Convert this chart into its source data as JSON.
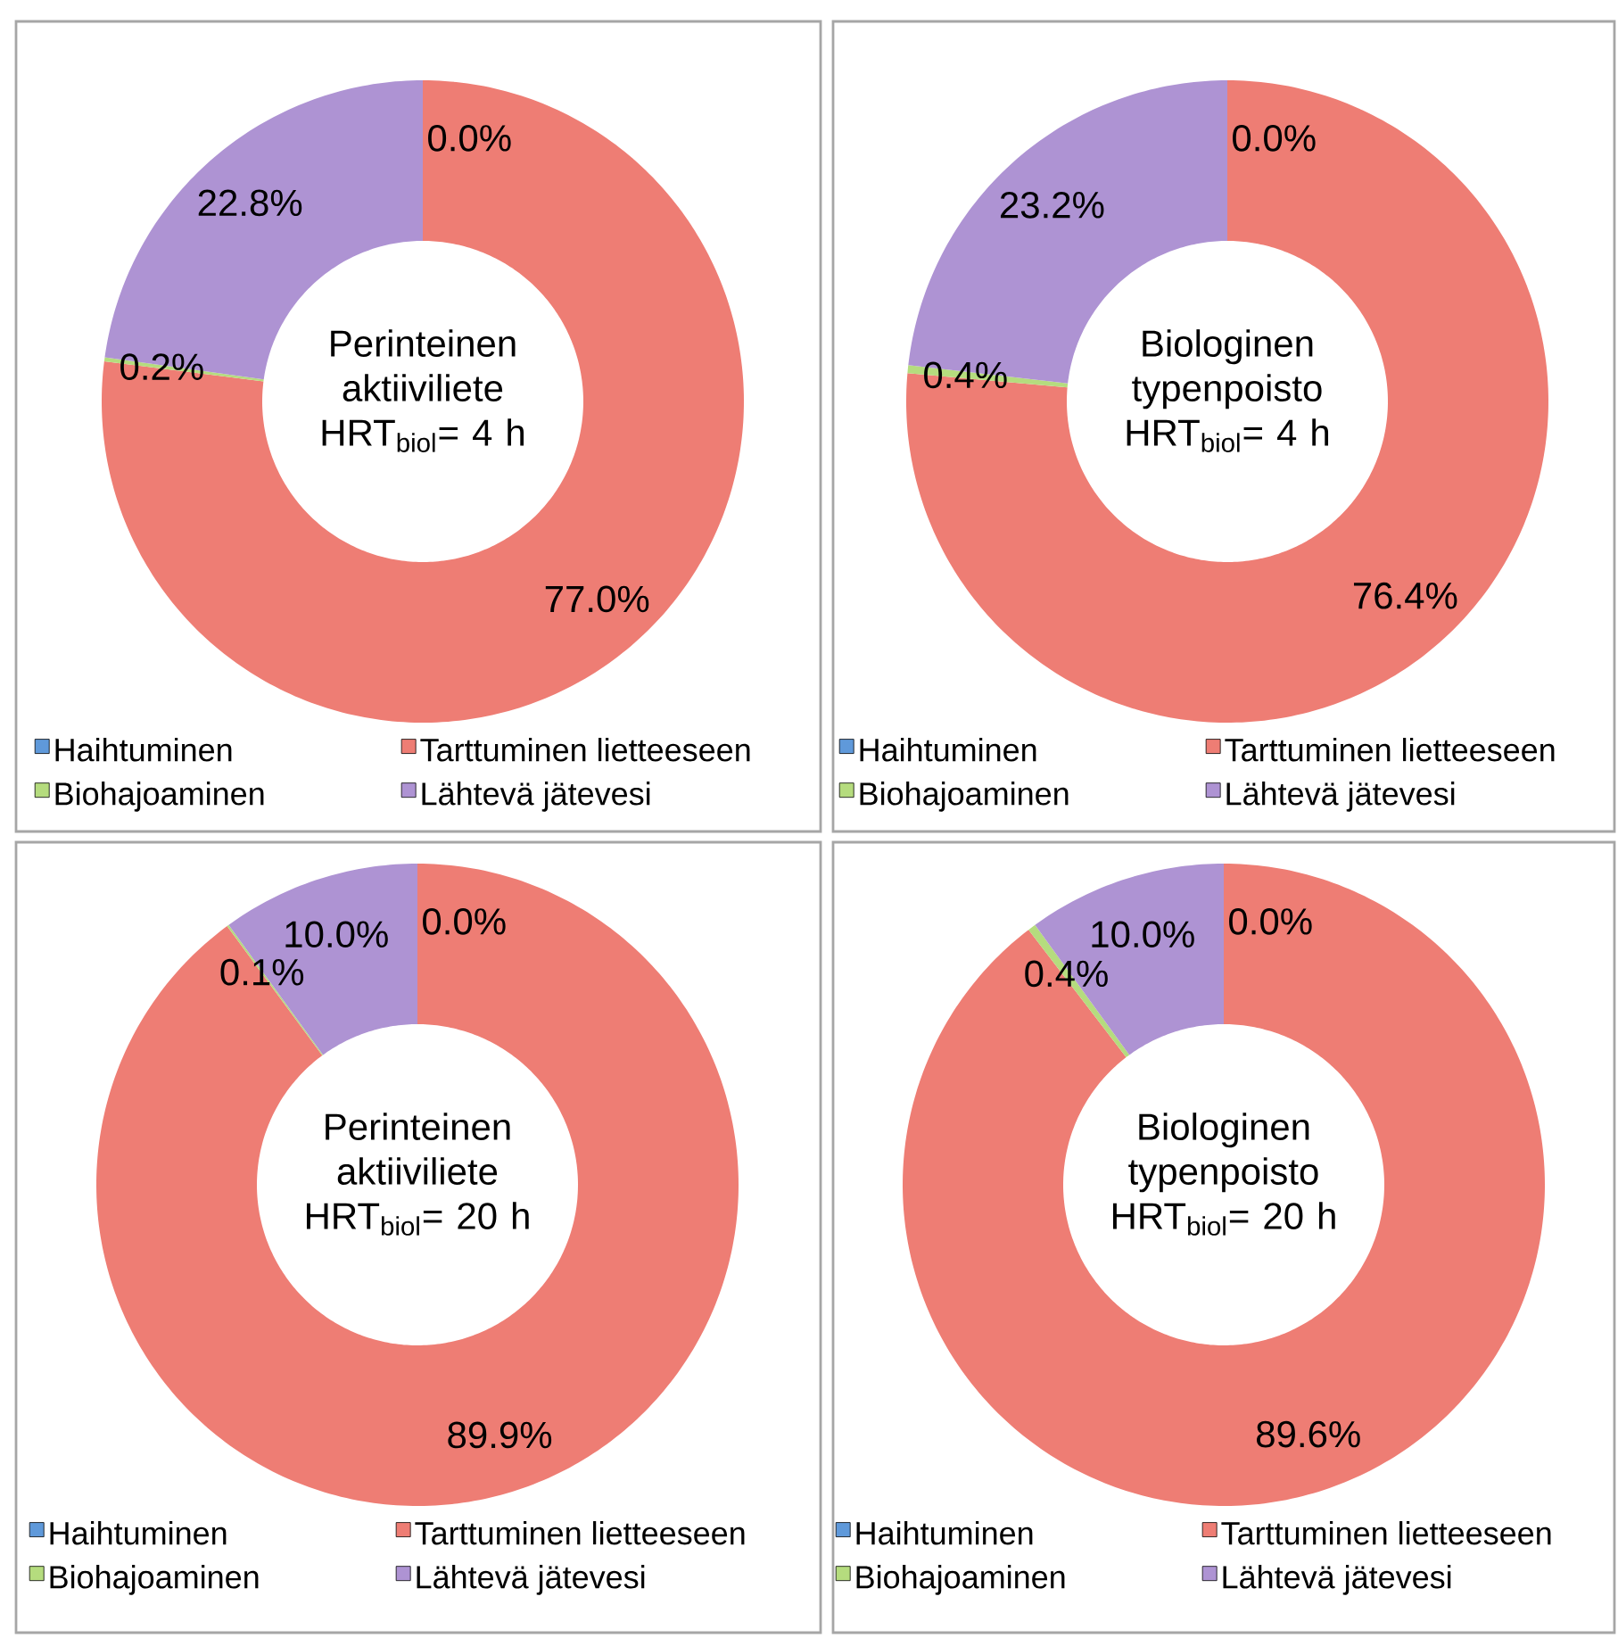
{
  "chart_data": [
    {
      "type": "donut",
      "title": "Perinteinen aktiiviliete HRT$_{biol}$= 4 h",
      "categories": [
        "Haihtuminen",
        "Tarttuminen lietteeseen",
        "Biohajoaminen",
        "Lähtevä jätevesi"
      ],
      "values": [
        0.0,
        77.0,
        0.2,
        22.8
      ],
      "colors": [
        "#5f99da",
        "#ee7d74",
        "#b5dc7e",
        "#ae93d3"
      ],
      "value_labels": [
        "0.0%",
        "77.0%",
        "0.2%",
        "22.8%"
      ],
      "legend": "bottom"
    },
    {
      "type": "donut",
      "title": "Biologinen typenpoisto HRT$_{biol}$= 4 h",
      "categories": [
        "Haihtuminen",
        "Tarttuminen lietteeseen",
        "Biohajoaminen",
        "Lähtevä jätevesi"
      ],
      "values": [
        0.0,
        76.4,
        0.4,
        23.2
      ],
      "colors": [
        "#5f99da",
        "#ee7d74",
        "#b5dc7e",
        "#ae93d3"
      ],
      "value_labels": [
        "0.0%",
        "76.4%",
        "0.4%",
        "23.2%"
      ],
      "legend": "bottom"
    },
    {
      "type": "donut",
      "title": "Perinteinen aktiiviliete HRT$_{biol}$= 20 h",
      "categories": [
        "Haihtuminen",
        "Tarttuminen lietteeseen",
        "Biohajoaminen",
        "Lähtevä jätevesi"
      ],
      "values": [
        0.0,
        89.9,
        0.1,
        10.0
      ],
      "colors": [
        "#5f99da",
        "#ee7d74",
        "#b5dc7e",
        "#ae93d3"
      ],
      "value_labels": [
        "0.0%",
        "89.9%",
        "0.1%",
        "10.0%"
      ],
      "legend": "bottom"
    },
    {
      "type": "donut",
      "title": "Biologinen typenpoisto HRT$_{biol}$= 20 h",
      "categories": [
        "Haihtuminen",
        "Tarttuminen lietteeseen",
        "Biohajoaminen",
        "Lähtevä jätevesi"
      ],
      "values": [
        0.0,
        89.6,
        0.4,
        10.0
      ],
      "colors": [
        "#5f99da",
        "#ee7d74",
        "#b5dc7e",
        "#ae93d3"
      ],
      "value_labels": [
        "0.0%",
        "89.6%",
        "0.4%",
        "10.0%"
      ],
      "legend": "bottom"
    }
  ]
}
